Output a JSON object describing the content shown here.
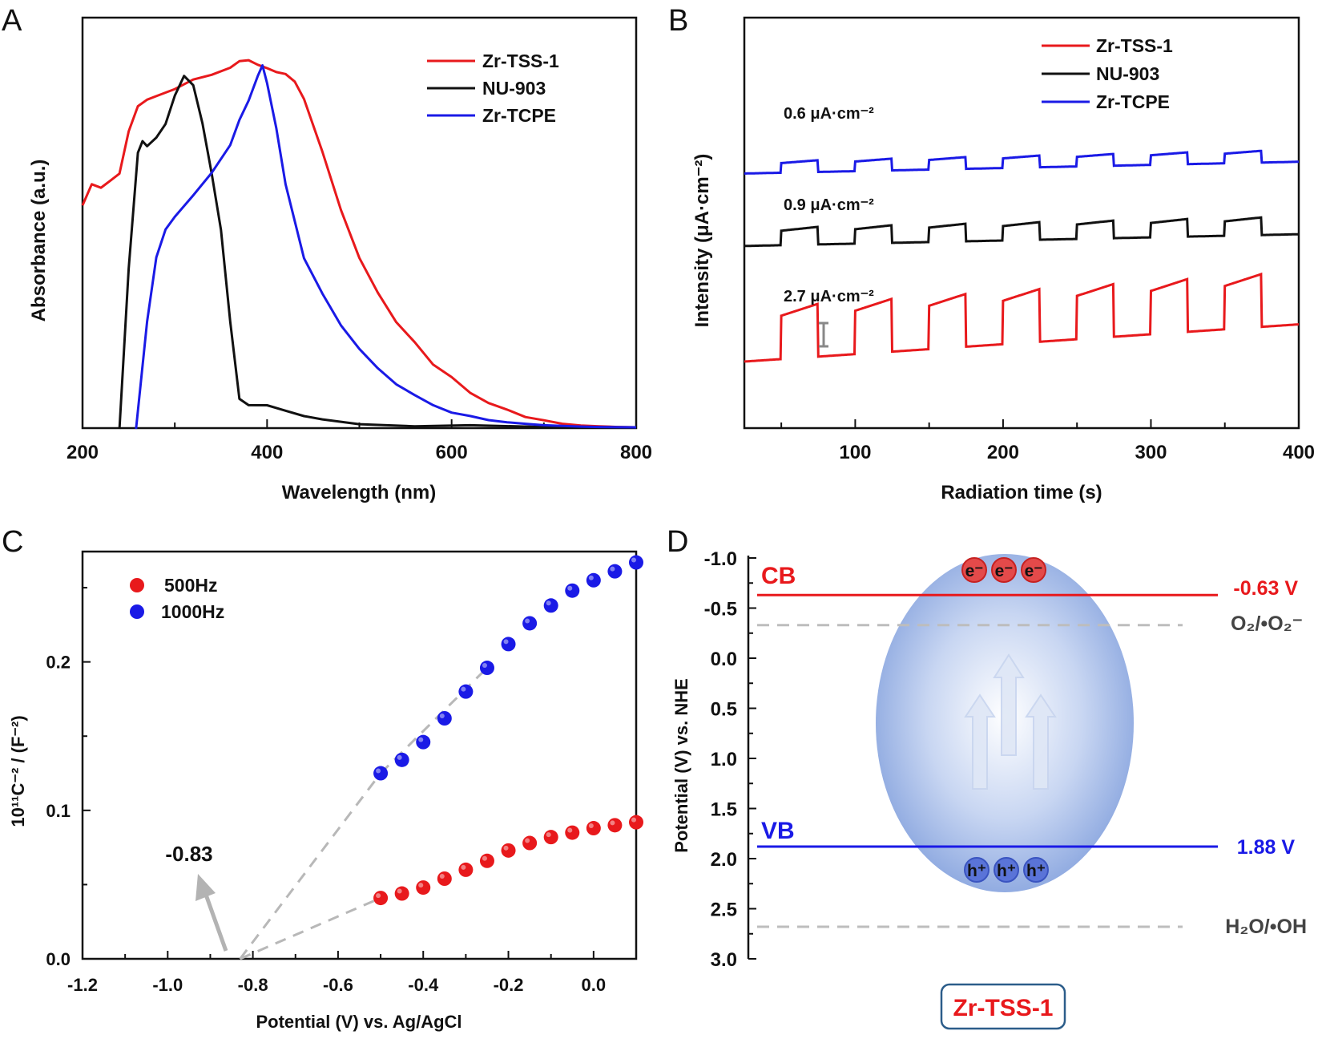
{
  "colors": {
    "red": "#e8191c",
    "black": "#111111",
    "blue": "#1a1ae6",
    "gray": "#b8b8b8",
    "ellipse": "#8aa7e0"
  },
  "chart_data": [
    {
      "panel": "A",
      "type": "line",
      "xlabel": "Wavelength (nm)",
      "ylabel": "Absorbance (a.u.)",
      "xlim": [
        200,
        800
      ],
      "x_ticks": [
        "200",
        "400",
        "600",
        "800"
      ],
      "y_ticks": "none",
      "legend_position": "top-right",
      "series": [
        {
          "name": "Zr-TSS-1",
          "color": "#e8191c",
          "x": [
            200,
            210,
            220,
            230,
            240,
            250,
            260,
            270,
            280,
            300,
            320,
            340,
            360,
            370,
            380,
            390,
            400,
            410,
            420,
            430,
            440,
            460,
            480,
            500,
            520,
            540,
            560,
            580,
            600,
            620,
            640,
            660,
            680,
            700,
            720,
            740,
            760,
            780,
            800
          ],
          "y": [
            0.63,
            0.69,
            0.68,
            0.7,
            0.72,
            0.84,
            0.91,
            0.93,
            0.94,
            0.96,
            0.99,
            1.0,
            1.02,
            1.04,
            1.04,
            1.03,
            1.02,
            1.01,
            1.0,
            0.98,
            0.93,
            0.78,
            0.62,
            0.48,
            0.38,
            0.3,
            0.24,
            0.18,
            0.14,
            0.1,
            0.07,
            0.05,
            0.03,
            0.02,
            0.01,
            0.005,
            0.003,
            0.001,
            0.0
          ]
        },
        {
          "name": "NU-903",
          "color": "#111111",
          "x": [
            240,
            250,
            260,
            265,
            270,
            280,
            290,
            300,
            310,
            320,
            330,
            340,
            350,
            360,
            370,
            380,
            400,
            420,
            440,
            460,
            500,
            560,
            620,
            700,
            800
          ],
          "y": [
            -0.02,
            0.45,
            0.78,
            0.81,
            0.8,
            0.82,
            0.86,
            0.94,
            1.0,
            0.97,
            0.86,
            0.72,
            0.56,
            0.3,
            0.08,
            0.06,
            0.06,
            0.05,
            0.03,
            0.02,
            0.01,
            0.005,
            0.003,
            0.001,
            0.0
          ]
        },
        {
          "name": "Zr-TCPE",
          "color": "#1a1ae6",
          "x": [
            258,
            270,
            280,
            290,
            300,
            320,
            340,
            360,
            370,
            380,
            390,
            395,
            400,
            410,
            420,
            440,
            460,
            480,
            500,
            520,
            540,
            560,
            580,
            600,
            620,
            640,
            660,
            680,
            700,
            720,
            740,
            760,
            800
          ],
          "y": [
            -0.02,
            0.3,
            0.48,
            0.56,
            0.6,
            0.66,
            0.72,
            0.8,
            0.87,
            0.93,
            1.0,
            1.03,
            0.98,
            0.85,
            0.69,
            0.48,
            0.38,
            0.29,
            0.22,
            0.17,
            0.12,
            0.09,
            0.06,
            0.04,
            0.03,
            0.02,
            0.015,
            0.01,
            0.006,
            0.004,
            0.002,
            0.001,
            0.0
          ]
        }
      ]
    },
    {
      "panel": "B",
      "type": "line",
      "xlabel": "Radiation time (s)",
      "ylabel": "Intensity (μA·cm⁻²)",
      "xlim": [
        25,
        400
      ],
      "x_ticks": [
        "100",
        "200",
        "300",
        "400"
      ],
      "y_ticks": "none",
      "legend_position": "top-right",
      "annotations": [
        "0.6 μA·cm⁻²",
        "0.9 μA·cm⁻²",
        "2.7 μA·cm⁻²"
      ],
      "light_on_s": [
        50,
        100,
        150,
        200,
        250,
        300,
        350
      ],
      "light_off_s": [
        75,
        125,
        175,
        225,
        275,
        325,
        375
      ],
      "series": [
        {
          "name": "Zr-TSS-1",
          "color": "#e8191c",
          "baseline_start": 0.0,
          "baseline_end": 1.9,
          "photocurrent": 2.7
        },
        {
          "name": "NU-903",
          "color": "#111111",
          "baseline_start": 5.9,
          "baseline_end": 6.5,
          "photocurrent": 0.9
        },
        {
          "name": "Zr-TCPE",
          "color": "#1a1ae6",
          "baseline_start": 9.6,
          "baseline_end": 10.2,
          "photocurrent": 0.6
        }
      ]
    },
    {
      "panel": "C",
      "type": "scatter",
      "xlabel": "Potential (V) vs. Ag/AgCl",
      "ylabel": "10¹¹C⁻² / (F⁻²)",
      "xlim": [
        -1.2,
        0.1
      ],
      "ylim": [
        0.0,
        0.27
      ],
      "x_ticks": [
        "-1.2",
        "-1.0",
        "-0.8",
        "-0.6",
        "-0.4",
        "-0.2",
        "0.0"
      ],
      "y_ticks": [
        "0.0",
        "0.1",
        "0.2"
      ],
      "legend_position": "top-left",
      "annotation": "-0.83",
      "series": [
        {
          "name": "500Hz",
          "color": "#e8191c",
          "x": [
            -0.5,
            -0.45,
            -0.4,
            -0.35,
            -0.3,
            -0.25,
            -0.2,
            -0.15,
            -0.1,
            -0.05,
            0.0,
            0.05,
            0.1
          ],
          "y": [
            0.041,
            0.044,
            0.048,
            0.054,
            0.06,
            0.066,
            0.073,
            0.078,
            0.082,
            0.085,
            0.088,
            0.09,
            0.092
          ]
        },
        {
          "name": "1000Hz",
          "color": "#1a1ae6",
          "x": [
            -0.5,
            -0.45,
            -0.4,
            -0.35,
            -0.3,
            -0.25,
            -0.2,
            -0.15,
            -0.1,
            -0.05,
            0.0,
            0.05,
            0.1
          ],
          "y": [
            0.125,
            0.134,
            0.146,
            0.162,
            0.18,
            0.196,
            0.212,
            0.226,
            0.238,
            0.248,
            0.255,
            0.261,
            0.267
          ]
        }
      ]
    },
    {
      "panel": "D",
      "type": "diagram",
      "ylabel": "Potential (V) vs. NHE",
      "ylim": [
        -1.0,
        3.0
      ],
      "y_ticks": [
        "-1.0",
        "-0.5",
        "0.0",
        "0.5",
        "1.0",
        "1.5",
        "2.0",
        "2.5",
        "3.0"
      ],
      "cb_label": "CB",
      "cb_value": -0.63,
      "cb_text": "-0.63 V",
      "vb_label": "VB",
      "vb_value": 1.88,
      "vb_text": "1.88 V",
      "o2_value": -0.33,
      "h2o_value": 2.68,
      "o2_label": "O₂/•O₂⁻",
      "h2o_label": "H₂O/•OH",
      "electron": "e⁻",
      "hole": "h⁺",
      "material": "Zr-TSS-1"
    }
  ],
  "panel_labels": [
    "A",
    "B",
    "C",
    "D"
  ]
}
